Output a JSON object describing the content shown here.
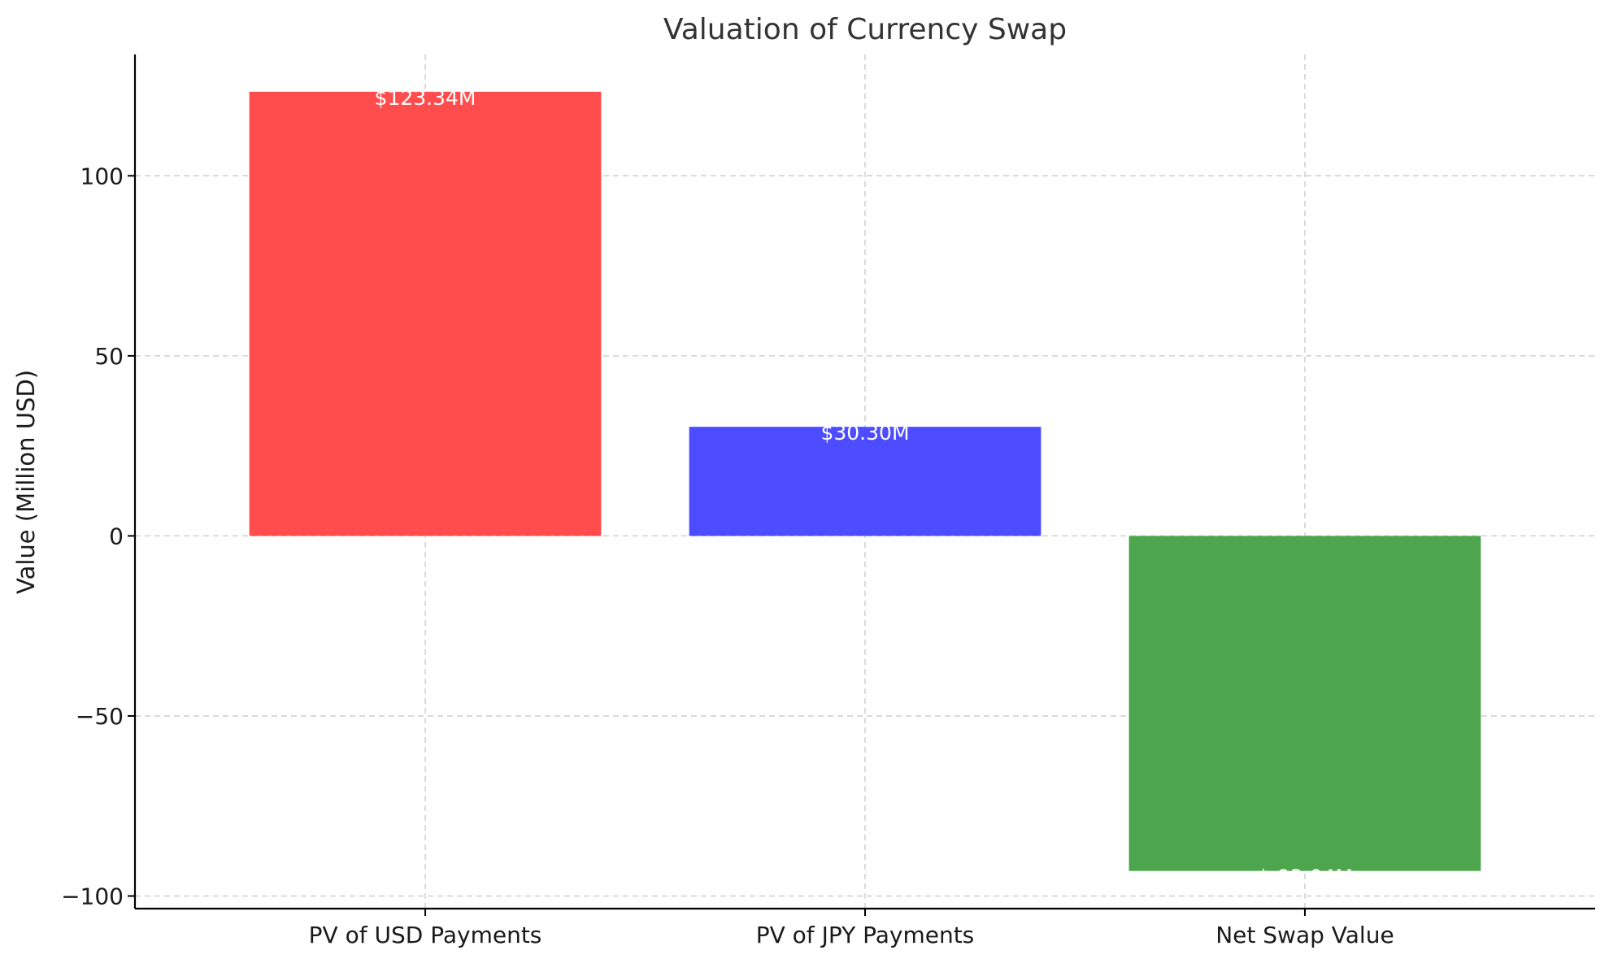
{
  "chart_data": {
    "type": "bar",
    "title": "Valuation of Currency Swap",
    "xlabel": "",
    "ylabel": "Value (Million USD)",
    "categories": [
      "PV of USD Payments",
      "PV of JPY Payments",
      "Net Swap Value"
    ],
    "values": [
      123.34,
      30.3,
      -93.04
    ],
    "data_labels": [
      "$123.34M",
      "$30.30M",
      "$-93.04M"
    ],
    "colors": [
      "#ff4d4d",
      "#4d4dff",
      "#4da64d"
    ],
    "ylim": [
      -103.5,
      133.7
    ],
    "yticks": [
      -100,
      -50,
      0,
      50,
      100
    ],
    "ytick_labels": [
      "−100",
      "−50",
      "0",
      "50",
      "100"
    ],
    "grid": true,
    "legend": "none"
  }
}
